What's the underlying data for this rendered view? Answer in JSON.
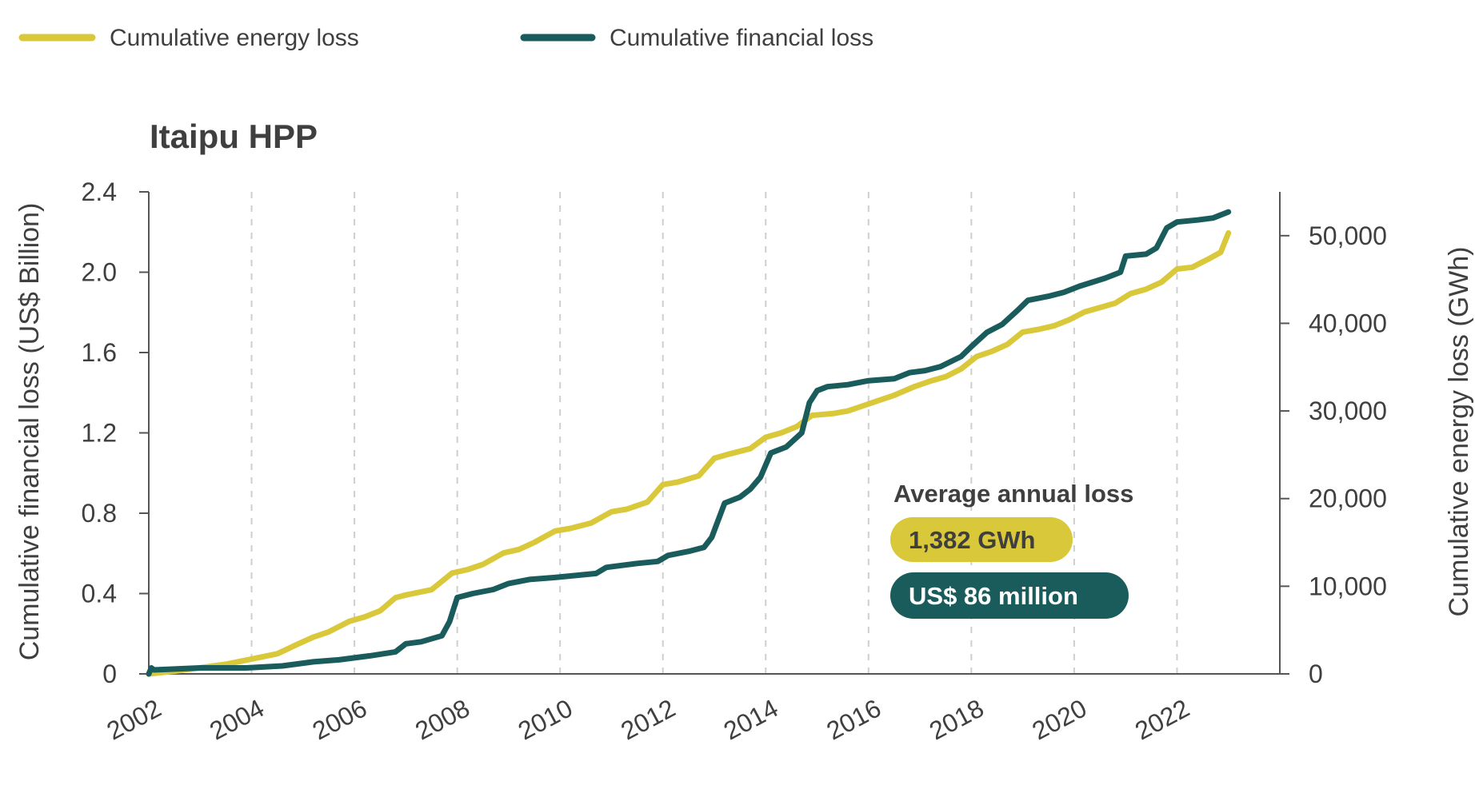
{
  "chart_data": {
    "type": "line",
    "title": "Itaipu HPP",
    "legend": {
      "placement": "top-left",
      "items": [
        {
          "label": "Cumulative energy loss",
          "color": "#d9c83a"
        },
        {
          "label": "Cumulative financial loss",
          "color": "#1a5c5c"
        }
      ]
    },
    "x_ticks": [
      "2002",
      "2004",
      "2006",
      "2008",
      "2010",
      "2012",
      "2014",
      "2016",
      "2018",
      "2020",
      "2022"
    ],
    "xlim": [
      2002,
      2024
    ],
    "y_left": {
      "label": "Cumulative financial loss (US$ Billion)",
      "ticks": [
        "0",
        "0.4",
        "0.8",
        "1.2",
        "1.6",
        "2.0",
        "2.4"
      ],
      "range": [
        0,
        2.4
      ]
    },
    "y_right": {
      "label": "Cumulative energy loss (GWh)",
      "ticks": [
        "0",
        "10,000",
        "20,000",
        "30,000",
        "40,000",
        "50,000"
      ],
      "range": [
        0,
        55000
      ]
    },
    "grid": {
      "vertical": "dashed",
      "horizontal": "off"
    },
    "series": [
      {
        "name": "Cumulative energy loss",
        "axis": "right",
        "color": "#d9c83a",
        "x": [
          2002.0,
          2002.5,
          2003.0,
          2003.5,
          2004.0,
          2004.5,
          2004.9,
          2005.2,
          2005.5,
          2005.9,
          2006.2,
          2006.5,
          2006.8,
          2007.0,
          2007.5,
          2007.9,
          2008.2,
          2008.5,
          2008.9,
          2009.2,
          2009.5,
          2009.9,
          2010.2,
          2010.6,
          2011.0,
          2011.3,
          2011.7,
          2012.0,
          2012.3,
          2012.7,
          2013.0,
          2013.3,
          2013.7,
          2014.0,
          2014.3,
          2014.6,
          2014.9,
          2015.3,
          2015.6,
          2015.9,
          2016.2,
          2016.5,
          2016.9,
          2017.2,
          2017.5,
          2017.8,
          2018.1,
          2018.4,
          2018.7,
          2019.0,
          2019.3,
          2019.6,
          2019.9,
          2020.2,
          2020.5,
          2020.8,
          2021.1,
          2021.4,
          2021.7,
          2022.0,
          2022.3,
          2022.6,
          2022.85,
          2023.0
        ],
        "values": [
          0,
          300,
          700,
          1100,
          1700,
          2300,
          3400,
          4200,
          4800,
          6000,
          6500,
          7200,
          8700,
          9000,
          9600,
          11500,
          11900,
          12500,
          13800,
          14200,
          15000,
          16300,
          16600,
          17200,
          18500,
          18800,
          19600,
          21600,
          21900,
          22600,
          24600,
          25100,
          25700,
          27000,
          27500,
          28200,
          29500,
          29700,
          30000,
          30600,
          31200,
          31800,
          32800,
          33400,
          33900,
          34800,
          36200,
          36800,
          37600,
          39000,
          39300,
          39700,
          40400,
          41300,
          41800,
          42300,
          43400,
          43900,
          44700,
          46200,
          46400,
          47300,
          48100,
          50300
        ]
      },
      {
        "name": "Cumulative financial loss",
        "axis": "left",
        "color": "#1a5c5c",
        "x": [
          2002.0,
          2002.05,
          2002.1,
          2003.0,
          2003.9,
          2004.6,
          2005.2,
          2005.7,
          2006.3,
          2006.8,
          2007.0,
          2007.3,
          2007.7,
          2007.85,
          2008.0,
          2008.3,
          2008.7,
          2009.0,
          2009.4,
          2009.9,
          2010.3,
          2010.7,
          2010.9,
          2011.5,
          2011.9,
          2012.1,
          2012.5,
          2012.8,
          2012.95,
          2013.2,
          2013.5,
          2013.7,
          2013.9,
          2014.1,
          2014.4,
          2014.7,
          2014.85,
          2015.0,
          2015.2,
          2015.6,
          2016.0,
          2016.5,
          2016.8,
          2017.1,
          2017.4,
          2017.8,
          2018.0,
          2018.3,
          2018.6,
          2018.9,
          2019.1,
          2019.5,
          2019.8,
          2020.1,
          2020.6,
          2020.9,
          2021.0,
          2021.4,
          2021.6,
          2021.8,
          2022.0,
          2022.4,
          2022.7,
          2023.0
        ],
        "values": [
          0,
          0.03,
          0.02,
          0.03,
          0.03,
          0.04,
          0.06,
          0.07,
          0.09,
          0.11,
          0.15,
          0.16,
          0.19,
          0.26,
          0.38,
          0.4,
          0.42,
          0.45,
          0.47,
          0.48,
          0.49,
          0.5,
          0.53,
          0.55,
          0.56,
          0.59,
          0.61,
          0.63,
          0.68,
          0.85,
          0.88,
          0.92,
          0.98,
          1.1,
          1.13,
          1.2,
          1.35,
          1.41,
          1.43,
          1.44,
          1.46,
          1.47,
          1.5,
          1.51,
          1.53,
          1.58,
          1.63,
          1.7,
          1.74,
          1.81,
          1.86,
          1.88,
          1.9,
          1.93,
          1.97,
          2.0,
          2.08,
          2.09,
          2.12,
          2.22,
          2.25,
          2.26,
          2.27,
          2.3
        ]
      }
    ],
    "annotation": {
      "title": "Average annual loss",
      "energy_badge": "1,382 GWh",
      "financial_badge": "US$ 86 million"
    }
  }
}
